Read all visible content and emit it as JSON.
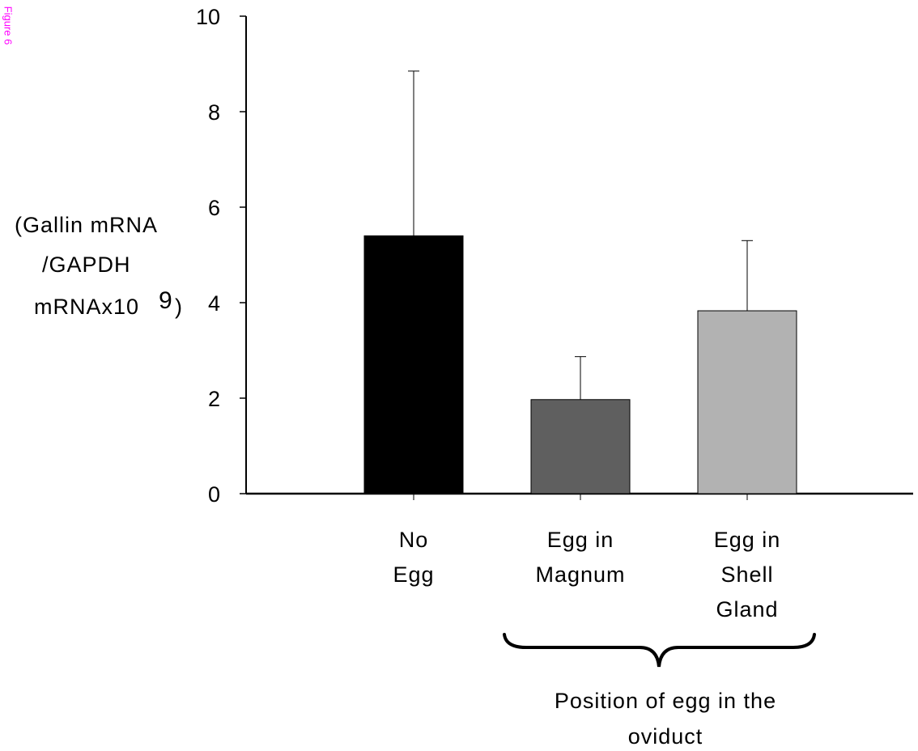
{
  "side_label": "Figure 6",
  "colors": {
    "axis": "#000000",
    "side_label": "#ff00ff"
  },
  "chart_data": {
    "type": "bar",
    "categories": [
      [
        "No",
        "Egg"
      ],
      [
        "Egg in",
        "Magnum"
      ],
      [
        "Egg in",
        "Shell",
        "Gland"
      ]
    ],
    "values": [
      5.4,
      1.97,
      3.83
    ],
    "error_upper": [
      8.85,
      2.87,
      5.3
    ],
    "colors": [
      "#000000",
      "#5f5f5f",
      "#b2b2b2"
    ],
    "ylabel": [
      "(Gallin mRNA",
      "/GAPDH",
      "mRNAx10",
      "9",
      ")"
    ],
    "xlabel": [
      "Position of egg in the",
      "oviduct"
    ],
    "yticks": [
      0,
      2,
      4,
      6,
      8,
      10
    ],
    "ylim": [
      0,
      10
    ],
    "grid": false,
    "legend": "none"
  }
}
